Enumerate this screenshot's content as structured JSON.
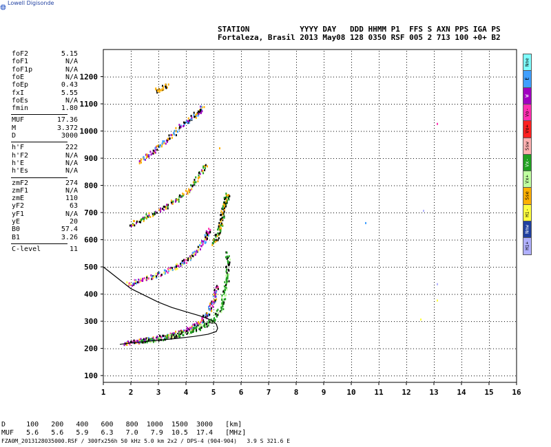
{
  "logo": {
    "text": "Lowell Digisonde",
    "icon": "globe-icon"
  },
  "header": {
    "row1": "STATION           YYYY DAY   DDD HHMM P1  FFS S AXN PPS IGA PS",
    "row2": "Fortaleza, Brasil 2013 May08 128 0350 RSF 005 2 713 100 +0+ B2"
  },
  "params": {
    "group1": [
      {
        "k": "foF2",
        "v": "5.15"
      },
      {
        "k": "foF1",
        "v": "N/A"
      },
      {
        "k": "foF1p",
        "v": "N/A"
      },
      {
        "k": "foE",
        "v": "N/A"
      },
      {
        "k": "foEp",
        "v": "0.43"
      },
      {
        "k": "fxI",
        "v": "5.55"
      },
      {
        "k": "foEs",
        "v": "N/A"
      },
      {
        "k": "fmin",
        "v": "1.80"
      }
    ],
    "group2": [
      {
        "k": "MUF",
        "v": "17.36"
      },
      {
        "k": "M",
        "v": "3.372"
      },
      {
        "k": "D",
        "v": "3000"
      }
    ],
    "group3": [
      {
        "k": "h'F",
        "v": "222"
      },
      {
        "k": "h'F2",
        "v": "N/A"
      },
      {
        "k": "h'E",
        "v": "N/A"
      },
      {
        "k": "h'Es",
        "v": "N/A"
      }
    ],
    "group4": [
      {
        "k": "zmF2",
        "v": "274"
      },
      {
        "k": "zmF1",
        "v": "N/A"
      },
      {
        "k": "zmE",
        "v": "110"
      },
      {
        "k": "yF2",
        "v": "63"
      },
      {
        "k": "yF1",
        "v": "N/A"
      },
      {
        "k": "yE",
        "v": "20"
      },
      {
        "k": "B0",
        "v": "57.4"
      },
      {
        "k": "B1",
        "v": "3.26"
      }
    ],
    "group5": [
      {
        "k": "C-level",
        "v": "11"
      }
    ]
  },
  "legend": [
    {
      "label": "Nne",
      "color": "#7fffff"
    },
    {
      "label": "E",
      "color": "#3f9fff"
    },
    {
      "label": "W",
      "color": "#a000c0"
    },
    {
      "label": "Vo-",
      "color": "#ff2fb0"
    },
    {
      "label": "Vo+",
      "color": "#ff2020"
    },
    {
      "label": "Ssw",
      "color": "#ffb0b0"
    },
    {
      "label": "Vx-",
      "color": "#20a020"
    },
    {
      "label": "Vx+",
      "color": "#c0ffa0"
    },
    {
      "label": "Sse",
      "color": "#ffb000"
    },
    {
      "label": "Hi-",
      "color": "#ffff40"
    },
    {
      "label": "Nnw",
      "color": "#2040a0"
    },
    {
      "label": "Hi+",
      "color": "#b0b0ff"
    }
  ],
  "footer": {
    "line1": "D     100   200   400   600   800  1000  1500  3000   [km]",
    "line2": "MUF   5.6   5.6   5.9   6.3   7.0   7.9  10.5  17.4   [MHz]",
    "line3": "FZA0M_2013128035000.RSF / 300fx256h 50 kHz 5.0 km 2x2 / DPS-4 (904-904)   3.9 S 321.6 E"
  },
  "chart_data": {
    "type": "scatter",
    "title": "",
    "xlabel": "",
    "ylabel": "",
    "xlim": [
      1,
      16
    ],
    "ylim": [
      75,
      1300
    ],
    "x_ticks": [
      1,
      2,
      3,
      4,
      5,
      6,
      7,
      8,
      9,
      10,
      11,
      12,
      13,
      14,
      15,
      16
    ],
    "y_ticks": [
      100,
      200,
      300,
      400,
      500,
      600,
      700,
      800,
      900,
      1000,
      1100,
      1200
    ],
    "grid": "dotted",
    "traces": [
      {
        "name": "O-trace F",
        "points": [
          [
            1.8,
            222
          ],
          [
            2.2,
            228
          ],
          [
            2.6,
            234
          ],
          [
            3.0,
            242
          ],
          [
            3.4,
            250
          ],
          [
            3.8,
            262
          ],
          [
            4.2,
            278
          ],
          [
            4.5,
            300
          ],
          [
            4.8,
            335
          ],
          [
            5.0,
            380
          ],
          [
            5.1,
            430
          ]
        ]
      },
      {
        "name": "X-trace F",
        "points": [
          [
            2.4,
            228
          ],
          [
            3.0,
            238
          ],
          [
            3.6,
            250
          ],
          [
            4.2,
            268
          ],
          [
            4.6,
            285
          ],
          [
            5.0,
            310
          ],
          [
            5.3,
            360
          ],
          [
            5.4,
            420
          ],
          [
            5.5,
            480
          ],
          [
            5.5,
            550
          ]
        ]
      },
      {
        "name": "O-trace 2F",
        "points": [
          [
            1.9,
            440
          ],
          [
            2.4,
            455
          ],
          [
            3.0,
            475
          ],
          [
            3.6,
            500
          ],
          [
            4.0,
            525
          ],
          [
            4.4,
            560
          ],
          [
            4.7,
            610
          ],
          [
            4.8,
            640
          ]
        ]
      },
      {
        "name": "X-trace 2F",
        "points": [
          [
            5.0,
            590
          ],
          [
            5.2,
            640
          ],
          [
            5.3,
            690
          ],
          [
            5.4,
            740
          ],
          [
            5.5,
            770
          ]
        ]
      },
      {
        "name": "O-trace 3F",
        "points": [
          [
            2.0,
            660
          ],
          [
            2.6,
            690
          ],
          [
            3.2,
            720
          ],
          [
            3.8,
            760
          ],
          [
            4.3,
            810
          ],
          [
            4.7,
            880
          ]
        ]
      },
      {
        "name": "O-trace 4F",
        "points": [
          [
            2.3,
            890
          ],
          [
            2.8,
            930
          ],
          [
            3.3,
            970
          ],
          [
            3.8,
            1020
          ],
          [
            4.3,
            1060
          ],
          [
            4.6,
            1090
          ]
        ]
      },
      {
        "name": "O-trace 5F",
        "points": [
          [
            2.9,
            1150
          ],
          [
            3.3,
            1170
          ]
        ]
      },
      {
        "name": "isolated",
        "points": [
          [
            10.5,
            665
          ],
          [
            12.5,
            310
          ],
          [
            12.6,
            710
          ],
          [
            13.1,
            1030
          ],
          [
            13.1,
            440
          ],
          [
            13.1,
            380
          ],
          [
            5.2,
            940
          ]
        ]
      }
    ],
    "profile": {
      "name": "electron density profile",
      "points": [
        [
          1.0,
          500
        ],
        [
          1.5,
          460
        ],
        [
          2.0,
          420
        ],
        [
          2.5,
          395
        ],
        [
          3.0,
          370
        ],
        [
          3.5,
          350
        ],
        [
          4.0,
          335
        ],
        [
          4.5,
          320
        ],
        [
          4.9,
          305
        ],
        [
          5.1,
          290
        ],
        [
          5.15,
          274
        ],
        [
          5.1,
          262
        ],
        [
          4.8,
          252
        ],
        [
          4.3,
          244
        ],
        [
          3.6,
          236
        ],
        [
          2.8,
          228
        ],
        [
          2.0,
          220
        ],
        [
          1.6,
          215
        ]
      ]
    }
  }
}
